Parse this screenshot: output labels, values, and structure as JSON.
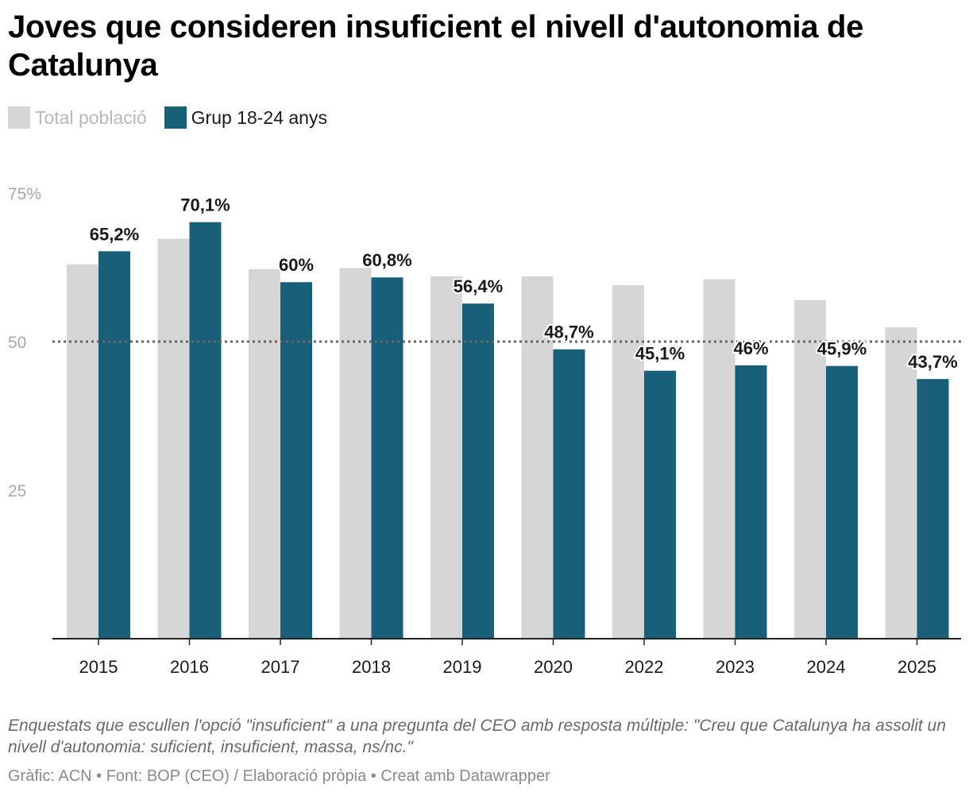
{
  "title": "Joves que consideren insuficient el nivell d'autonomia de Catalunya",
  "legend": {
    "total_label": "Total població",
    "group_label": "Grup 18-24 anys"
  },
  "colors": {
    "total": "#d6d6d6",
    "group": "#18607a",
    "axis_text": "#a8a8a8",
    "reference_line": "#666666"
  },
  "chart_data": {
    "type": "bar",
    "title": "Joves que consideren insuficient el nivell d'autonomia de Catalunya",
    "xlabel": "",
    "ylabel": "",
    "ylim": [
      0,
      75
    ],
    "yticks": [
      25,
      50,
      75
    ],
    "ytick_labels": [
      "25",
      "50",
      "75%"
    ],
    "reference_line": 50,
    "categories": [
      "2015",
      "2016",
      "2017",
      "2018",
      "2019",
      "2020",
      "2022",
      "2023",
      "2024",
      "2025"
    ],
    "series": [
      {
        "name": "Total població",
        "values": [
          63,
          67.3,
          62.2,
          62.4,
          61,
          61,
          59.5,
          60.5,
          57,
          52.4
        ]
      },
      {
        "name": "Grup 18-24 anys",
        "values": [
          65.2,
          70.1,
          60,
          60.8,
          56.4,
          48.7,
          45.1,
          46,
          45.9,
          43.7
        ],
        "labels": [
          "65,2%",
          "70,1%",
          "60%",
          "60,8%",
          "56,4%",
          "48,7%",
          "45,1%",
          "46%",
          "45,9%",
          "43,7%"
        ]
      }
    ]
  },
  "note": "Enquestats que escullen l'opció \"insuficient\" a una pregunta del CEO amb resposta múltiple: \"Creu que Catalunya ha assolit un nivell d'autonomia: suficient, insuficient, massa, ns/nc.\"",
  "credits": "Gràfic: ACN • Font: BOP (CEO) / Elaboració pròpia • Creat amb Datawrapper"
}
